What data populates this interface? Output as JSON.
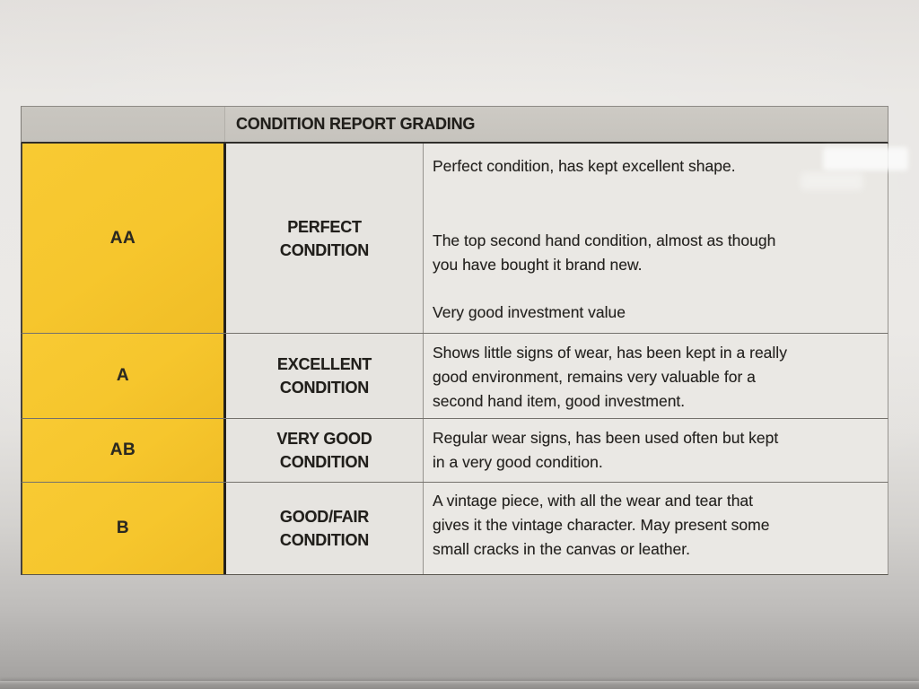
{
  "document": {
    "title": "CONDITION REPORT GRADING",
    "rows": [
      {
        "grade": "AA",
        "condition": "PERFECT\nCONDITION",
        "paragraphs": [
          "Perfect condition, has kept excellent shape.",
          "The top second hand condition, almost as though\nyou have bought it brand new.",
          "Very good investment value"
        ]
      },
      {
        "grade": "A",
        "condition": "EXCELLENT\nCONDITION",
        "paragraphs": [
          "Shows little signs of wear, has been kept in a really\ngood environment, remains very valuable for a\nsecond hand item, good investment."
        ]
      },
      {
        "grade": "AB",
        "condition": "VERY GOOD\nCONDITION",
        "paragraphs": [
          "Regular wear signs, has been used often but kept\nin a very good condition."
        ]
      },
      {
        "grade": "B",
        "condition": "GOOD/FAIR\nCONDITION",
        "paragraphs": [
          "A vintage piece, with all the wear and tear that\ngives it the vintage character. May present some\nsmall cracks in the canvas or leather."
        ]
      }
    ],
    "colors": {
      "grade_column": "#f6c62d",
      "header_band": "#c8c5bf",
      "cell_background": "#e9e7e3",
      "paper": "#e9e7e4",
      "text": "#211f1b"
    }
  }
}
